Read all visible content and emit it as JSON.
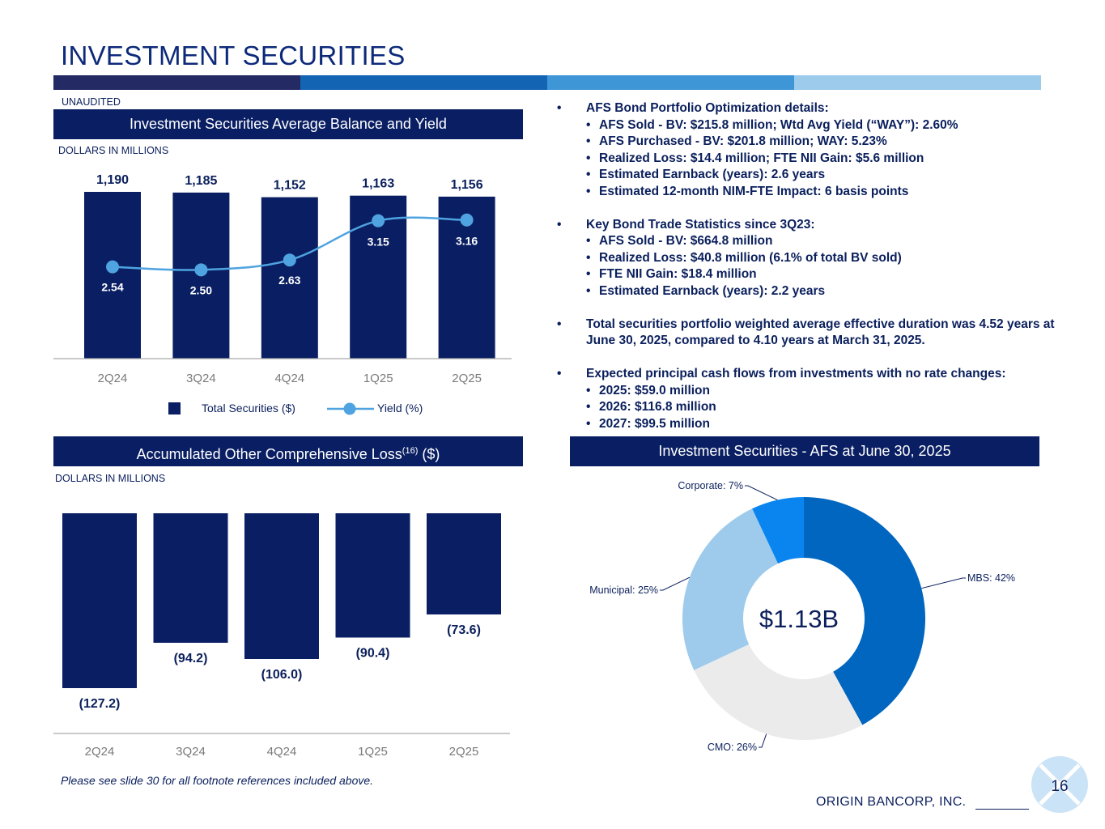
{
  "title": "INVESTMENT SECURITIES",
  "unaudited": "UNAUDITED",
  "brand_colors": [
    "#242a64",
    "#1464b4",
    "#3f96d6",
    "#9ccbec"
  ],
  "top_chart": {
    "header": "Investment Securities Average Balance and Yield",
    "units": "DOLLARS IN MILLIONS",
    "legend_bar": "Total Securities ($)",
    "legend_line": "Yield (%)"
  },
  "bottom_chart": {
    "header_main": "Accumulated Other Comprehensive Loss",
    "header_sup": "(16)",
    "header_suffix": " ($)",
    "units": "DOLLARS IN MILLIONS"
  },
  "pie_chart": {
    "header": "Investment Securities - AFS at June 30, 2025",
    "center_label": "$1.13B"
  },
  "bullets": [
    {
      "text": "AFS Bond Portfolio Optimization details:",
      "subs": [
        "AFS Sold - BV: $215.8 million; Wtd Avg Yield (“WAY”): 2.60%",
        "AFS Purchased - BV: $201.8 million; WAY: 5.23%",
        "Realized Loss: $14.4 million; FTE NII Gain: $5.6 million",
        "Estimated Earnback (years): 2.6 years",
        "Estimated 12-month NIM-FTE Impact: 6 basis points"
      ]
    },
    {
      "text": "Key Bond Trade Statistics since 3Q23:",
      "subs": [
        "AFS Sold - BV: $664.8 million",
        "Realized Loss: $40.8 million (6.1% of total BV sold)",
        "FTE NII Gain: $18.4 million",
        "Estimated Earnback (years): 2.2 years"
      ]
    },
    {
      "text": "Total securities portfolio weighted average effective duration was 4.52 years at June 30, 2025, compared to 4.10 years at March 31, 2025.",
      "subs": []
    },
    {
      "text": "Expected principal cash flows from investments with no rate changes:",
      "subs": [
        "2025: $59.0 million",
        "2026: $116.8 million",
        "2027: $99.5 million"
      ]
    }
  ],
  "footnote": "Please see slide 30 for all footnote references included above.",
  "footer": "ORIGIN BANCORP, INC.",
  "page_number": "16",
  "chart_data": [
    {
      "type": "bar",
      "title": "Investment Securities Average Balance and Yield",
      "categories": [
        "2Q24",
        "3Q24",
        "4Q24",
        "1Q25",
        "2Q25"
      ],
      "series": [
        {
          "name": "Total Securities ($)",
          "kind": "bar",
          "values": [
            1190,
            1185,
            1152,
            1163,
            1156
          ],
          "labels": [
            "1,190",
            "1,185",
            "1,152",
            "1,163",
            "1,156"
          ],
          "color": "#0a1f63"
        },
        {
          "name": "Yield (%)",
          "kind": "line",
          "values": [
            2.54,
            2.5,
            2.63,
            3.15,
            3.16
          ],
          "labels": [
            "2.54",
            "2.50",
            "2.63",
            "3.15",
            "3.16"
          ],
          "color": "#4ea3e0"
        }
      ],
      "ylabel": "DOLLARS IN MILLIONS"
    },
    {
      "type": "bar",
      "title": "Accumulated Other Comprehensive Loss(16) ($)",
      "categories": [
        "2Q24",
        "3Q24",
        "4Q24",
        "1Q25",
        "2Q25"
      ],
      "values": [
        -127.2,
        -94.2,
        -106.0,
        -90.4,
        -73.6
      ],
      "labels": [
        "(127.2)",
        "(94.2)",
        "(106.0)",
        "(90.4)",
        "(73.6)"
      ],
      "color": "#0a1f63",
      "ylabel": "DOLLARS IN MILLIONS"
    },
    {
      "type": "pie",
      "title": "Investment Securities - AFS at June 30, 2025",
      "center_label": "$1.13B",
      "slices": [
        {
          "name": "MBS",
          "value": 42,
          "label": "MBS: 42%",
          "color": "#0066bf"
        },
        {
          "name": "CMO",
          "value": 26,
          "label": "CMO: 26%",
          "color": "#ebebeb"
        },
        {
          "name": "Municipal",
          "value": 25,
          "label": "Municipal: 25%",
          "color": "#9ecbec"
        },
        {
          "name": "Corporate",
          "value": 7,
          "label": "Corporate: 7%",
          "color": "#0a85f0"
        }
      ]
    }
  ]
}
